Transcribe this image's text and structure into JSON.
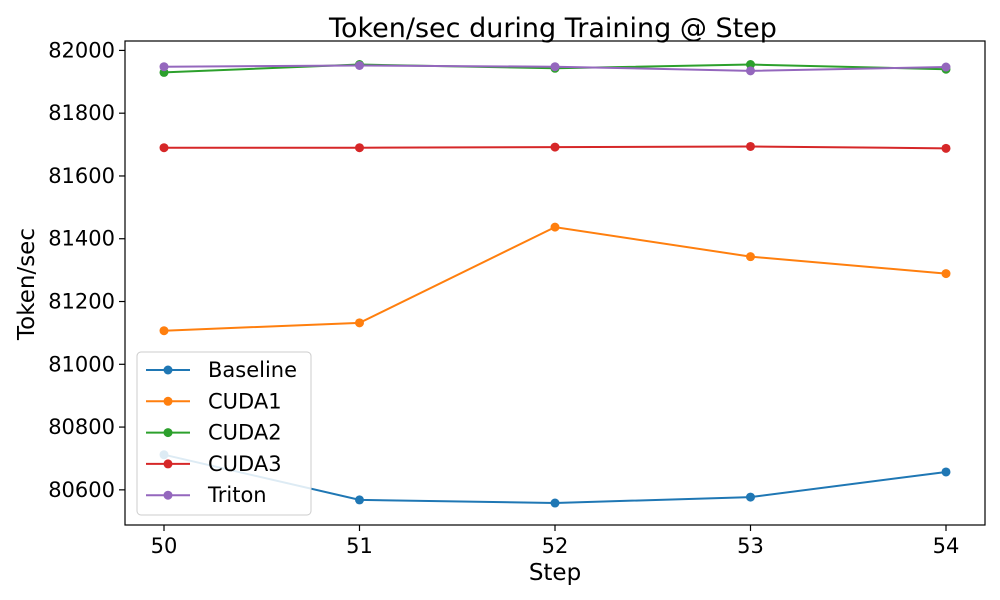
{
  "chart_data": {
    "type": "line",
    "title": "Token/sec during Training @ Step",
    "xlabel": "Step",
    "ylabel": "Token/sec",
    "x": [
      50,
      51,
      52,
      53,
      54
    ],
    "x_ticks": [
      "50",
      "51",
      "52",
      "53",
      "54"
    ],
    "ylim": [
      80488,
      82030
    ],
    "y_ticks": [
      80600,
      80800,
      81000,
      81200,
      81400,
      81600,
      81800,
      82000
    ],
    "y_tick_labels": [
      "80600",
      "80800",
      "81000",
      "81200",
      "81400",
      "81600",
      "81800",
      "82000"
    ],
    "grid": false,
    "legend_position": "lower-left",
    "series": [
      {
        "name": "Baseline",
        "color": "#1f77b4",
        "values": [
          80712,
          80568,
          80558,
          80577,
          80657
        ]
      },
      {
        "name": "CUDA1",
        "color": "#ff7f0e",
        "values": [
          81107,
          81132,
          81437,
          81343,
          81289
        ]
      },
      {
        "name": "CUDA2",
        "color": "#2ca02c",
        "values": [
          81930,
          81955,
          81943,
          81955,
          81940
        ]
      },
      {
        "name": "CUDA3",
        "color": "#d62728",
        "values": [
          81690,
          81690,
          81692,
          81694,
          81688
        ]
      },
      {
        "name": "Triton",
        "color": "#9467bd",
        "values": [
          81948,
          81952,
          81948,
          81935,
          81947
        ]
      }
    ]
  }
}
